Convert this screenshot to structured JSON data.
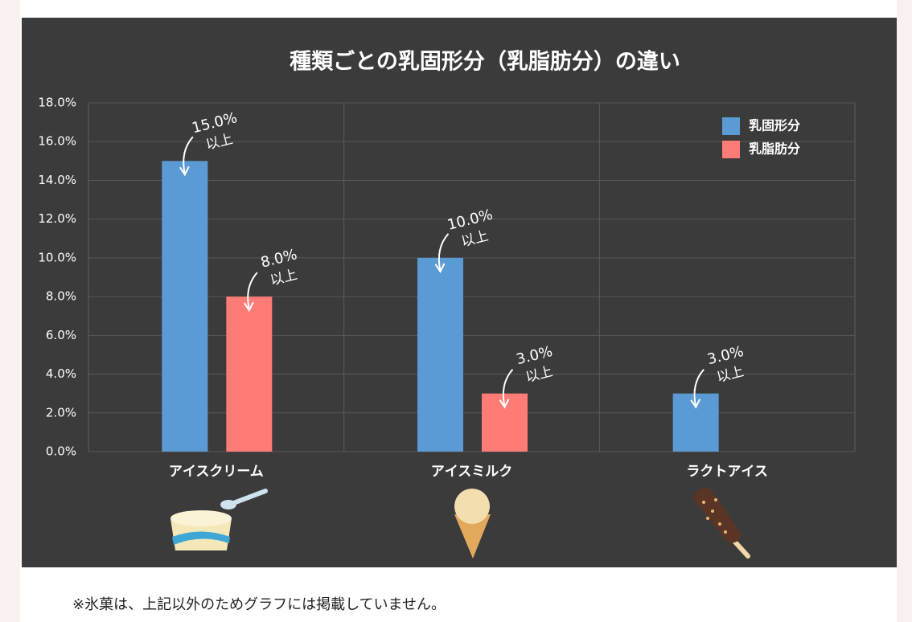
{
  "chart_data": {
    "type": "bar",
    "title": "種類ごとの乳固形分（乳脂肪分）の違い",
    "categories": [
      "アイスクリーム",
      "アイスミルク",
      "ラクトアイス"
    ],
    "series": [
      {
        "name": "乳固形分",
        "color": "#5b9bd5",
        "values": [
          15,
          10,
          3
        ],
        "value_labels": [
          "15.0%",
          "10.0%",
          "3.0%"
        ]
      },
      {
        "name": "乳脂肪分",
        "color": "#ff7b76",
        "values": [
          8,
          3,
          null
        ],
        "value_labels": [
          "8.0%",
          "3.0%",
          null
        ]
      }
    ],
    "label_note": "以上",
    "ylim": [
      0,
      18
    ],
    "yticks": [
      {
        "value": 0,
        "label": "0.0%"
      },
      {
        "value": 2,
        "label": "2.0%"
      },
      {
        "value": 4,
        "label": "4.0%"
      },
      {
        "value": 6,
        "label": "6.0%"
      },
      {
        "value": 8,
        "label": "8.0%"
      },
      {
        "value": 10,
        "label": "10.0%"
      },
      {
        "value": 12,
        "label": "12.0%"
      },
      {
        "value": 14,
        "label": "14.0%"
      },
      {
        "value": 16,
        "label": "16.0%"
      },
      {
        "value": 18,
        "label": "18.0%"
      }
    ],
    "grid": true,
    "legend": "top-right",
    "footnote": "※氷菓は、上記以外のためグラフには掲載していません。"
  }
}
